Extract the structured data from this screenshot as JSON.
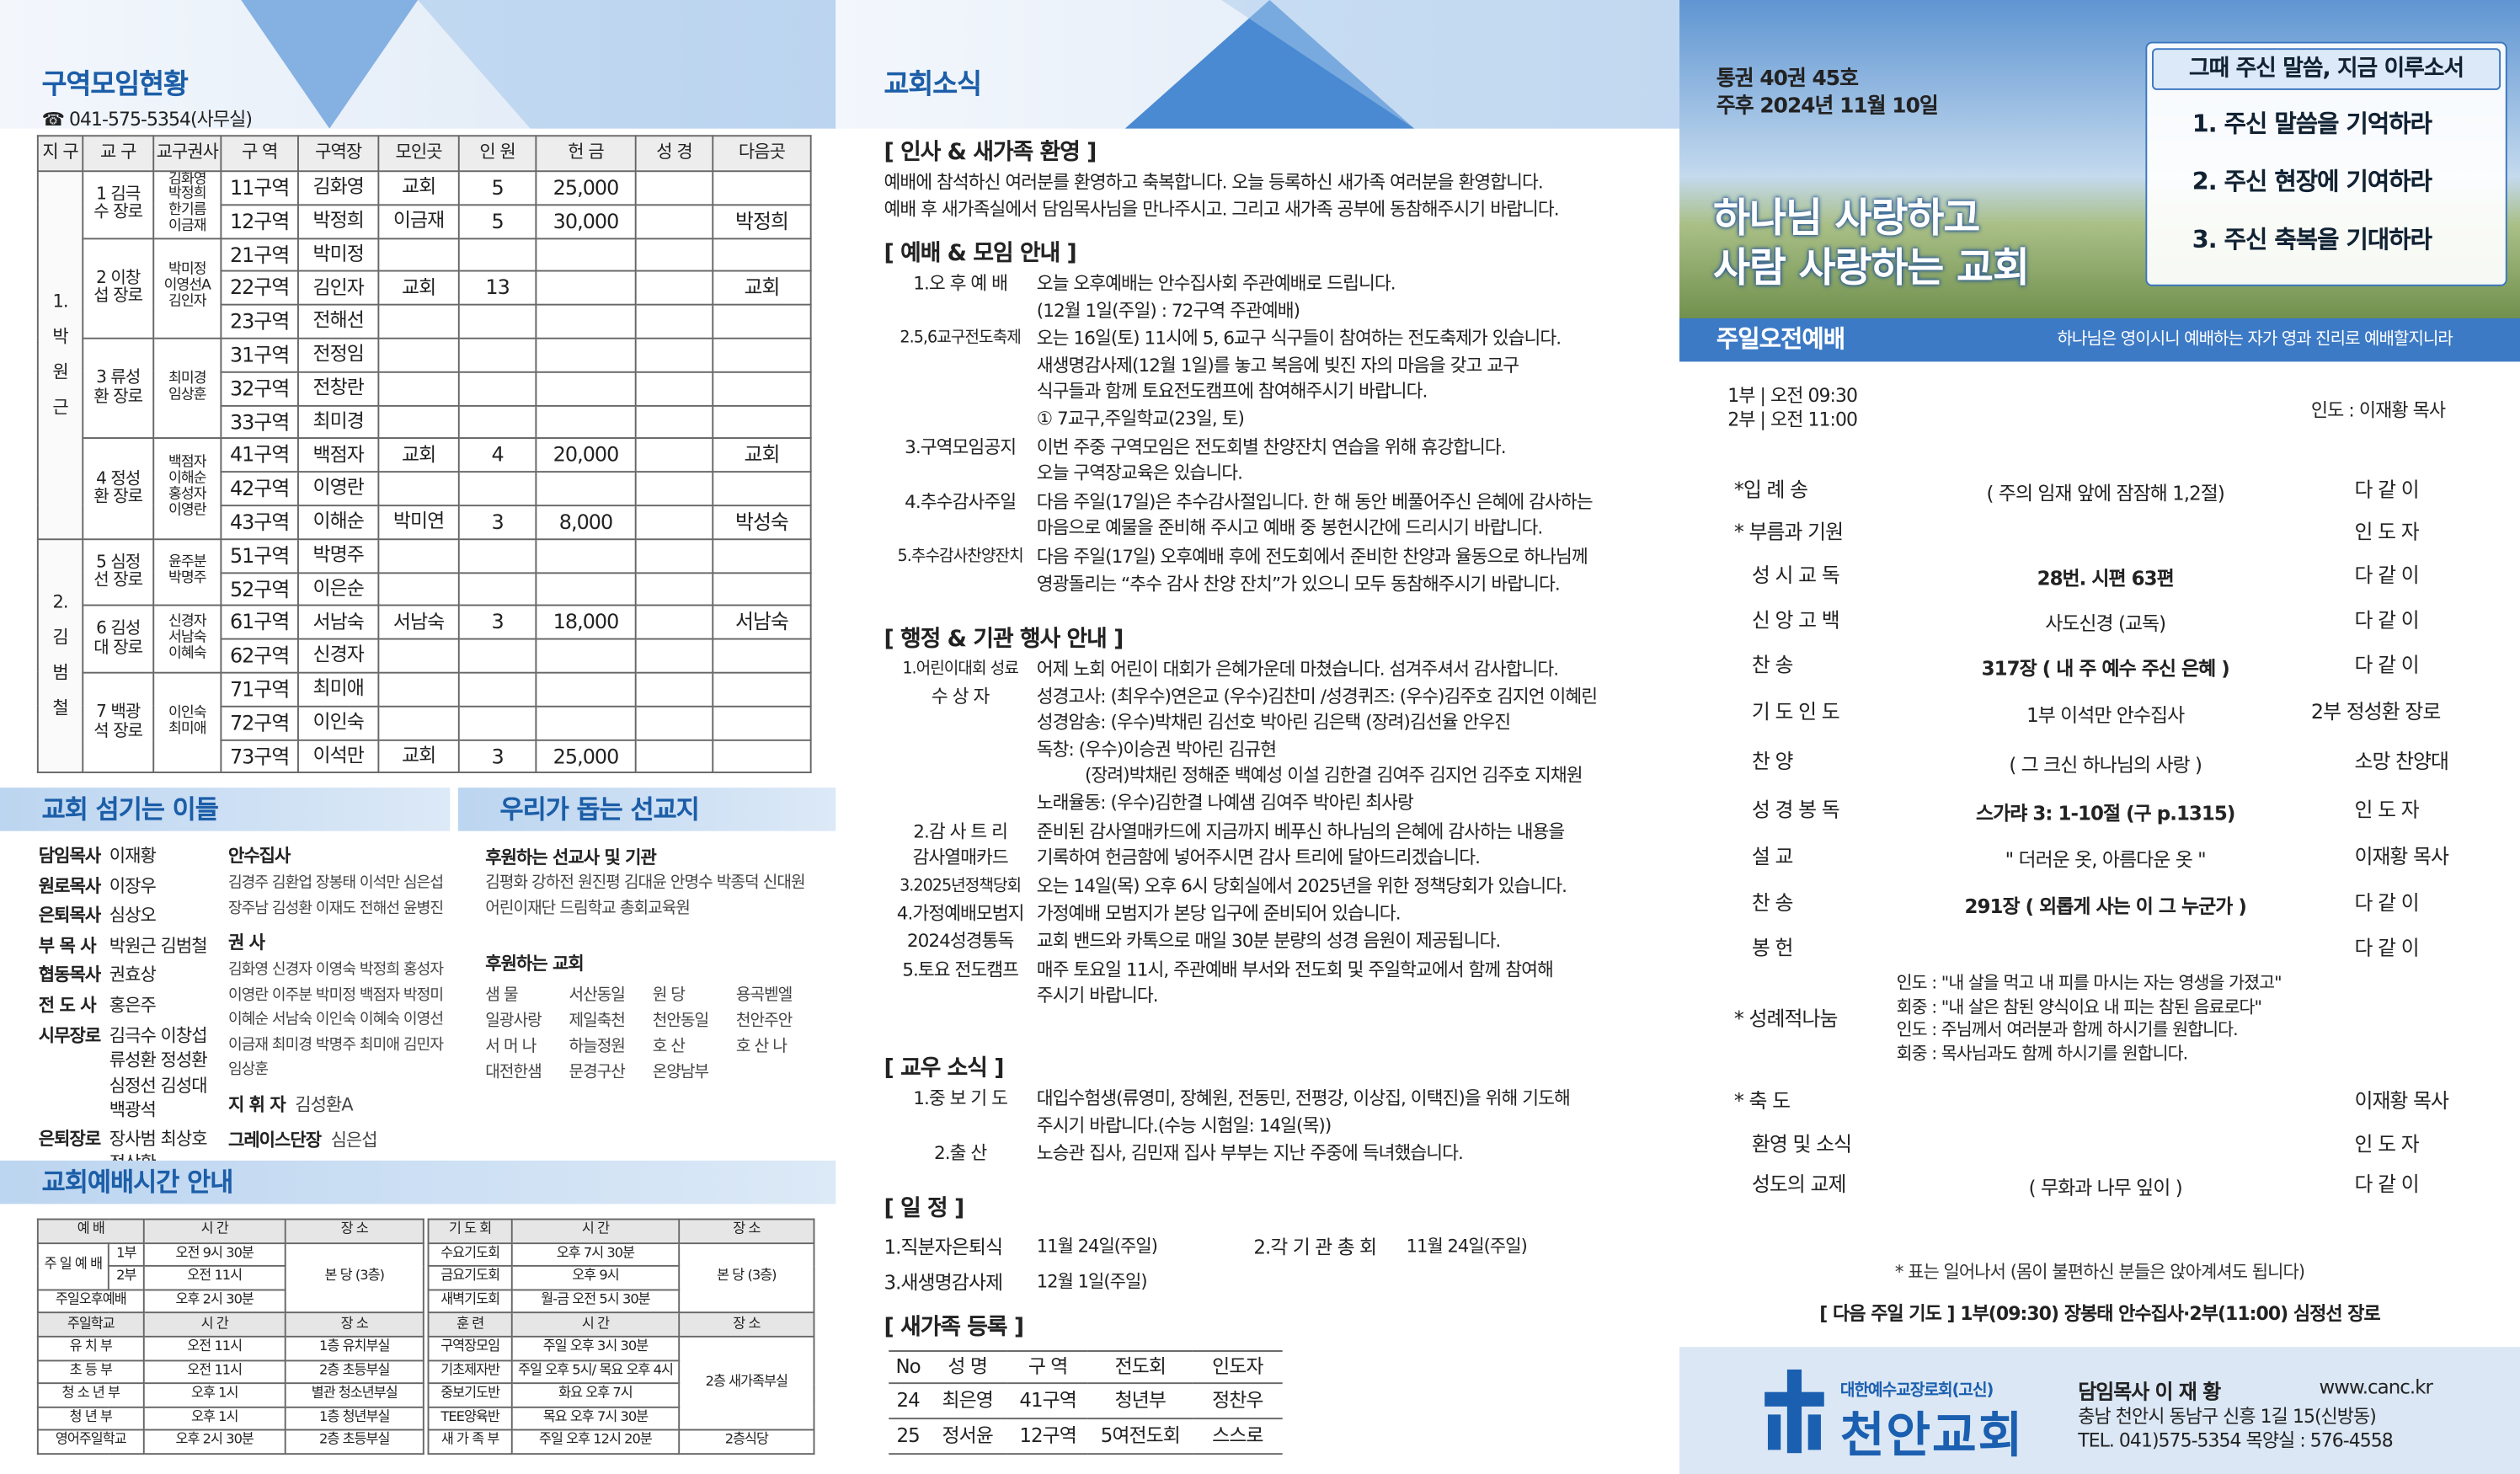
{
  "zone_status": {
    "title": "구역모임현황",
    "phone": "☎ 041-575-5354(사무실)",
    "headers": [
      "지 구",
      "교 구",
      "교구권사",
      "구 역",
      "구역장",
      "모인곳",
      "인 원",
      "헌 금",
      "성 경",
      "다음곳"
    ],
    "districts": [
      {
        "name": "1. 박 원 근",
        "parishes": [
          {
            "name": "1 김극수 장로",
            "kwonsa": "김화영 박정희 한기름 이금재",
            "rows": [
              [
                "11구역",
                "김화영",
                "교회",
                "5",
                "25,000",
                null,
                null
              ],
              [
                "12구역",
                "박정희",
                "이금재",
                "5",
                "30,000",
                null,
                "박정희"
              ]
            ]
          },
          {
            "name": "2 이창섭 장로",
            "kwonsa": "박미정 이영선A 김인자",
            "rows": [
              [
                "21구역",
                "박미정",
                null,
                null,
                null,
                null,
                null
              ],
              [
                "22구역",
                "김인자",
                "교회",
                "13",
                null,
                null,
                "교회"
              ],
              [
                "23구역",
                "전해선",
                null,
                null,
                null,
                null,
                null
              ]
            ]
          },
          {
            "name": "3 류성환 장로",
            "kwonsa": "최미경 임상훈",
            "rows": [
              [
                "31구역",
                "전정임",
                null,
                null,
                null,
                null,
                null
              ],
              [
                "32구역",
                "전창란",
                null,
                null,
                null,
                null,
                null
              ],
              [
                "33구역",
                "최미경",
                null,
                null,
                null,
                null,
                null
              ]
            ]
          },
          {
            "name": "4 정성환 장로",
            "kwonsa": "백점자 이해순 홍성자 이영란",
            "rows": [
              [
                "41구역",
                "백점자",
                "교회",
                "4",
                "20,000",
                null,
                "교회"
              ],
              [
                "42구역",
                "이영란",
                null,
                null,
                null,
                null,
                null
              ],
              [
                "43구역",
                "이해순",
                "박미연",
                "3",
                "8,000",
                null,
                "박성숙"
              ]
            ]
          }
        ]
      },
      {
        "name": "2. 김 범 철",
        "parishes": [
          {
            "name": "5 심정선 장로",
            "kwonsa": "윤주분 박명주",
            "rows": [
              [
                "51구역",
                "박명주",
                null,
                null,
                null,
                null,
                null
              ],
              [
                "52구역",
                "이은순",
                null,
                null,
                null,
                null,
                null
              ]
            ]
          },
          {
            "name": "6 김성대 장로",
            "kwonsa": "신경자 서남숙 이혜숙",
            "rows": [
              [
                "61구역",
                "서남숙",
                "서남숙",
                "3",
                "18,000",
                null,
                "서남숙"
              ],
              [
                "62구역",
                "신경자",
                null,
                null,
                null,
                null,
                null
              ]
            ]
          },
          {
            "name": "7 백광석 장로",
            "kwonsa": "이인숙 최미애",
            "rows": [
              [
                "71구역",
                "최미애",
                null,
                null,
                null,
                null,
                null
              ],
              [
                "72구역",
                "이인숙",
                null,
                null,
                null,
                null,
                null
              ],
              [
                "73구역",
                "이석만",
                "교회",
                "3",
                "25,000",
                null,
                null
              ]
            ]
          }
        ]
      }
    ]
  },
  "servants": {
    "title": "교회 섬기는 이들",
    "col1": [
      {
        "role": "담임목사",
        "names": "이재황"
      },
      {
        "role": "원로목사",
        "names": "이장우"
      },
      {
        "role": "은퇴목사",
        "names": "심상오"
      },
      {
        "role": "부 목 사",
        "names": "박원근 김범철"
      },
      {
        "role": "협동목사",
        "names": "권효상"
      },
      {
        "role": "전 도 사",
        "names": "홍은주"
      },
      {
        "role": "시무장로",
        "names": "김극수 이창섭 류성환 정성환 심정선 김성대 백광석"
      },
      {
        "role": "은퇴장로",
        "names": "장사범 최상호 정상환"
      }
    ],
    "col2": [
      {
        "role": "안수집사",
        "names": "김경주 김환업 장봉태 이석만 심은섭 장주남 김성환 이재도 전해선 윤병진"
      },
      {
        "role": "권 사",
        "names": "김화영 신경자 이영숙 박정희 홍성자 이영란 이주분 박미정 백점자 박정미 이혜순 서남숙 이인숙 이혜숙 이영선 이금재 최미경 박명주 최미애 김민자 임상훈"
      },
      {
        "role": "지 휘 자",
        "names": "김성환A"
      },
      {
        "role": "그레이스단장",
        "names": "심은섭"
      }
    ]
  },
  "missions": {
    "title": "우리가 돕는 선교지",
    "support_title": "후원하는 선교사 및 기관",
    "support": "김평화 강하전 원진평 김대윤 안명수 박종덕 신대원 어린이재단 드림학교 총회교육원",
    "church_title": "후원하는 교회",
    "churches": [
      "샘 물",
      "서산동일",
      "원 당",
      "용곡벧엘",
      "일광사랑",
      "제일축천",
      "천안동일",
      "천안주안",
      "서 머 나",
      "하늘정원",
      "호 산",
      "호 산 나",
      "대전한샘",
      "문경구산",
      "온양남부"
    ]
  },
  "service_times": {
    "title": "교회예배시간 안내",
    "left": {
      "head": [
        "예 배",
        "시 간",
        "장 소"
      ],
      "sunday": "주 일 예 배",
      "parts": [
        [
          "1부",
          "오전 9시 30분"
        ],
        [
          "2부",
          "오전 11시"
        ]
      ],
      "place": "본 당 (3층)",
      "afternoon": [
        "주일오후예배",
        "오후 2시 30분"
      ],
      "school_head": [
        "주일학교",
        "시 간",
        "장 소"
      ],
      "school": [
        [
          "유 치 부",
          "오전 11시",
          "1층 유치부실"
        ],
        [
          "초 등 부",
          "오전 11시",
          "2층 초등부실"
        ],
        [
          "청 소 년 부",
          "오후 1시",
          "별관 청소년부실"
        ],
        [
          "청 년 부",
          "오후 1시",
          "1층 청년부실"
        ],
        [
          "영어주일학교",
          "오후 2시 30분",
          "2층 초등부실"
        ]
      ]
    },
    "right": {
      "head": [
        "기 도 회",
        "시 간",
        "장 소"
      ],
      "prayer": [
        [
          "수요기도회",
          "오후 7시 30분"
        ],
        [
          "금요기도회",
          "오후 9시"
        ],
        [
          "새벽기도회",
          "월-금 오전 5시 30분"
        ]
      ],
      "prayer_place": "본 당 (3층)",
      "training_head": [
        "훈 련",
        "시 간",
        "장 소"
      ],
      "training": [
        [
          "구역장모임",
          "주일 오후 3시 30분"
        ],
        [
          "기초제자반",
          "주일 오후 5시/ 목요 오후 4시"
        ],
        [
          "중보기도반",
          "화요 오후 7시"
        ],
        [
          "TEE양육반",
          "목요 오후 7시 30분"
        ]
      ],
      "training_place": "2층 새가족부실",
      "newcomer": [
        "새 가 족 부",
        "주일 오후 12시 20분",
        "2층식당"
      ]
    }
  },
  "news": {
    "title": "교회소식",
    "welcome": {
      "heading": "[ 인사 & 새가족 환영 ]",
      "lines": [
        "예배에 참석하신 여러분를 환영하고 축복합니다. 오늘 등록하신 새가족 여러분을 환영합니다.",
        "예배 후 새가족실에서 담임목사님을 만나주시고. 그리고 새가족 공부에 동참해주시기 바랍니다."
      ]
    },
    "worship": {
      "heading": "[ 예배 & 모임 안내 ]",
      "items": [
        {
          "label": [
            "1.오 후 예 배"
          ],
          "lines": [
            "오늘 오후예배는 안수집사회 주관예배로 드립니다.",
            "(12월 1일(주일) : 72구역 주관예배)"
          ]
        },
        {
          "label": [
            "2.5,6교구전도축제"
          ],
          "lines": [
            "오는 16일(토) 11시에 5, 6교구 식구들이 참여하는 전도축제가 있습니다.",
            "새생명감사제(12월 1일)를 놓고 복음에 빚진 자의 마음을 갖고 교구",
            "식구들과 함께 토요전도캠프에 참여해주시기 바랍니다.",
            "① 7교구,주일학교(23일, 토)"
          ]
        },
        {
          "label": [
            "3.구역모임공지"
          ],
          "lines": [
            "이번 주중 구역모임은 전도회별 찬양잔치 연습을 위해 휴강합니다.",
            "오늘 구역장교육은 있습니다."
          ]
        },
        {
          "label": [
            "4.추수감사주일"
          ],
          "lines": [
            "다음 주일(17일)은 추수감사절입니다. 한 해 동안 베풀어주신 은혜에 감사하는",
            "마음으로 예물을 준비해 주시고 예배 중 봉헌시간에 드리시기 바랍니다."
          ]
        },
        {
          "label": [
            "5.추수감사찬양잔치"
          ],
          "lines": [
            "다음 주일(17일) 오후예배 후에 전도회에서 준비한 찬양과 율동으로 하나님께",
            "영광돌리는 “추수 감사 찬양 잔치”가 있으니 모두 동참해주시기 바랍니다."
          ]
        }
      ]
    },
    "admin": {
      "heading": "[ 행정 & 기관 행사 안내 ]",
      "items": [
        {
          "label": [
            "1.어린이대회 성료",
            "수 상 자"
          ],
          "lines": [
            "어제 노회 어린이 대회가 은혜가운데 마쳤습니다. 섬겨주셔서 감사합니다.",
            "성경고사: (최우수)연은교 (우수)김찬미 /성경퀴즈: (우수)김주호 김지언 이혜린",
            "성경암송: (우수)박채린 김선호 박아린 김은택 (장려)김선율 안우진",
            "독창: (우수)이승권 박아린 김규현",
            "(장려)박채린 정해준 백예성 이설 김한결 김여주 김지언 김주호 지채원",
            "노래율동: (우수)김한결 나예샘 김여주 박아린 최사랑"
          ]
        },
        {
          "label": [
            "2.감 사 트 리",
            "감사열매카드"
          ],
          "lines": [
            "준비된 감사열매카드에 지금까지 베푸신 하나님의 은혜에 감사하는 내용을",
            "기록하여 헌금함에 넣어주시면 감사 트리에 달아드리겠습니다."
          ]
        },
        {
          "label": [
            "3.2025년정책당회"
          ],
          "lines": [
            "오는 14일(목) 오후 6시 당회실에서 2025년을 위한 정책당회가 있습니다."
          ]
        },
        {
          "label": [
            "4.가정예배모범지",
            "2024성경통독"
          ],
          "lines": [
            "가정예배 모범지가 본당 입구에 준비되어 있습니다.",
            "교회 밴드와 카톡으로 매일 30분 분량의 성경 음원이 제공됩니다."
          ]
        },
        {
          "label": [
            "5.토요 전도캠프"
          ],
          "lines": [
            "매주 토요일 11시, 주관예배 부서와 전도회 및 주일학교에서 함께 참여해",
            "주시기 바랍니다."
          ]
        }
      ]
    },
    "members": {
      "heading": "[ 교우 소식 ]",
      "items": [
        {
          "label": [
            "1.중 보 기 도"
          ],
          "lines": [
            "대입수험생(류영미, 장혜원, 전동민, 전평강, 이상집, 이택진)을 위해 기도해",
            "주시기 바랍니다.(수능 시험일: 14일(목))"
          ]
        },
        {
          "label": [
            "2.출 산"
          ],
          "lines": [
            "노승관 집사, 김민재 집사 부부는 지난 주중에 득녀했습니다."
          ]
        }
      ]
    },
    "schedule": {
      "heading": "[ 일 정 ]",
      "items": [
        {
          "label": "1.직분자은퇴식",
          "date": "11월 24일(주일)"
        },
        {
          "label": "2.각 기 관 총 회",
          "date": "11월 24일(주일)"
        },
        {
          "label": "3.새생명감사제",
          "date": "12월 1일(주일)"
        }
      ]
    },
    "newcomers": {
      "heading": "[ 새가족 등록 ]",
      "headers": [
        "No",
        "성 명",
        "구 역",
        "전도회",
        "인도자"
      ],
      "rows": [
        [
          "24",
          "최은영",
          "41구역",
          "청년부",
          "정찬우"
        ],
        [
          "25",
          "정서윤",
          "12구역",
          "5여전도회",
          "스스로"
        ]
      ]
    }
  },
  "cover": {
    "issue": "통권 40권 45호",
    "date": "주후 2024년 11월 10일",
    "motto_title": "그때 주신 말씀, 지금 이루소서",
    "motto": [
      "1. 주신 말씀을 기억하라",
      "2. 주신 현장에 기여하라",
      "3. 주신 축복을 기대하라"
    ],
    "slogan": [
      "하나님 사랑하고",
      "사람 사랑하는 교회"
    ]
  },
  "worship_order": {
    "title": "주일오전예배",
    "verse": "하나님은 영이시니 예배하는 자가 영과 진리로 예배할지니라",
    "times": [
      "1부 | 오전 09:30",
      "2부 | 오전 11:00"
    ],
    "leader": "인도 : 이재황 목사",
    "rows": [
      {
        "label": "*입 례 송",
        "middle": [
          "( 주의 임재 앞에 잠잠해 1,2절)"
        ],
        "right": "다 같 이"
      },
      {
        "label": "* 부름과 기원",
        "middle": null,
        "right": "인 도 자"
      },
      {
        "label": "성 시 교 독",
        "middle": [
          "28번. 시편 63편"
        ],
        "right": "다 같 이"
      },
      {
        "label": "신 앙 고 백",
        "middle": [
          "사도신경 (교독)"
        ],
        "right": "다 같 이"
      },
      {
        "label": "찬 송",
        "middle": [
          "317장 ( 내 주 예수 주신 은혜 )"
        ],
        "right": "다 같 이"
      },
      {
        "label": "기 도 인 도",
        "middle": [
          "1부 이석만 안수집사"
        ],
        "right": "2부 정성환 장로"
      },
      {
        "label": "찬 양",
        "middle": [
          "( 그 크신 하나님의 사랑 )"
        ],
        "right": "소망 찬양대"
      },
      {
        "label": "성 경 봉 독",
        "middle": [
          "스가랴 3: 1-10절 (구 p.1315)"
        ],
        "right": "인 도 자"
      },
      {
        "label": "설 교",
        "middle": [
          "\" 더러운 옷, 아름다운 옷 \""
        ],
        "right": "이재황 목사"
      },
      {
        "label": "찬 송",
        "middle": [
          "291장 ( 외롭게 사는 이 그 누군가 )"
        ],
        "right": "다 같 이"
      },
      {
        "label": "봉 헌",
        "middle": null,
        "right": "다 같 이"
      },
      {
        "label": "* 성례적나눔",
        "middle": [
          "인도 : \"내 살을 먹고 내 피를 마시는 자는 영생을 가졌고\"",
          "회중 : \"내 살은 참된 양식이요 내 피는 참된 음료로다\"",
          "인도 : 주님께서 여러분과 함께 하시기를 원합니다.",
          "회중 : 목사님과도 함께 하시기를 원합니다."
        ],
        "right": null
      },
      {
        "label": "* 축 도",
        "middle": null,
        "right": "이재황 목사"
      },
      {
        "label": "환영 및 소식",
        "middle": null,
        "right": "인 도 자"
      },
      {
        "label": "성도의 교제",
        "middle": [
          "( 무화과 나무 잎이 )"
        ],
        "right": "다 같 이"
      }
    ],
    "note": "* 표는 일어나서 (몸이 불편하신 분들은 앉아계셔도 됩니다)",
    "next_prayer": "[ 다음 주일 기도 ] 1부(09:30) 장봉태 안수집사·2부(11:00) 심정선 장로"
  },
  "footer": {
    "denomination": "대한예수교장로회(고신)",
    "church": "천안교회",
    "pastor": "담임목사 이 재 황",
    "website": "www.canc.kr",
    "address": "충남 천안시 동남구 신흥 1길 15(신방동)",
    "contact": "TEL. 041)575-5354 목양실 : 576-4558"
  }
}
